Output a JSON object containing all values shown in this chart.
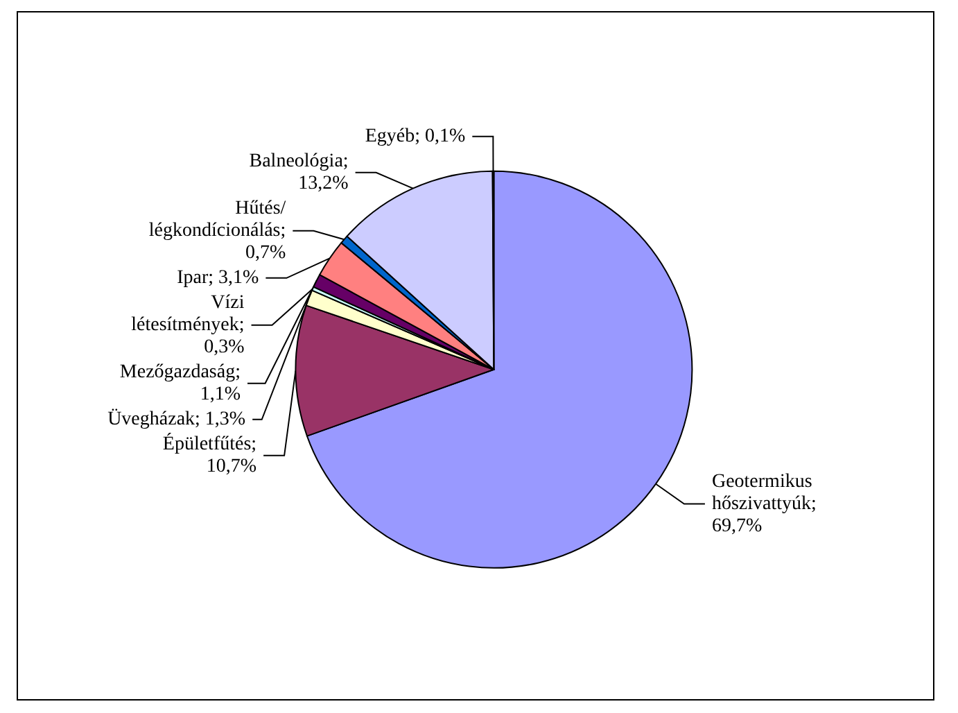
{
  "chart_data": {
    "type": "pie",
    "categories": [
      "Geotermikus hőszivattyúk",
      "Épületfűtés",
      "Üvegházak",
      "Vízi létesítmények",
      "Mezőgazdaság",
      "Ipar",
      "Hűtés/ légkondícionálás",
      "Balneológia",
      "Egyéb"
    ],
    "values": [
      69.7,
      10.7,
      1.3,
      0.3,
      1.1,
      3.1,
      0.7,
      13.2,
      0.1
    ],
    "value_labels": [
      "; 69,7%",
      "; 10,7%",
      "; 1,3%",
      "; 0,3%",
      "; 1,1%",
      "; 3,1%",
      "; 0,7%",
      "; 13,2%",
      "; 0,1%"
    ],
    "colors": [
      "#9999ff",
      "#993366",
      "#ffffcc",
      "#ccffff",
      "#660066",
      "#ff8080",
      "#0066cc",
      "#ccccff",
      "#000080"
    ],
    "legend": false
  }
}
